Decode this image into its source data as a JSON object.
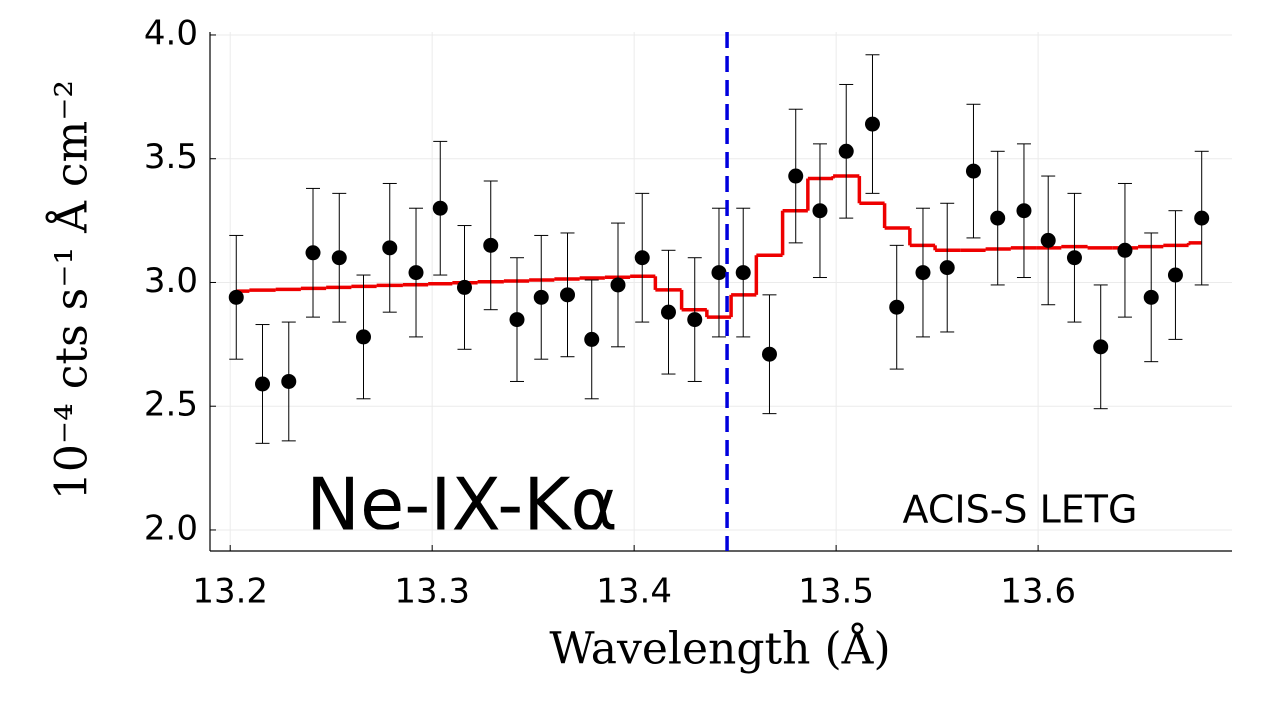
{
  "chart_data": {
    "type": "errorbar_step",
    "xlabel": "Wavelength (Å)",
    "ylabel": "10⁻⁴ cts s⁻¹ Å cm⁻²",
    "annotations": [
      "Ne-IX-Kα",
      "ACIS-S LETG"
    ],
    "xlim": [
      13.19,
      13.696
    ],
    "ylim": [
      1.915,
      4.012
    ],
    "xticks": [
      13.2,
      13.3,
      13.4,
      13.5,
      13.6
    ],
    "yticks": [
      {
        "value": 2,
        "label": "2.0"
      },
      2.5,
      {
        "value": 3,
        "label": "3.0"
      },
      3.5,
      {
        "value": 4,
        "label": "4.0"
      }
    ],
    "grid": true,
    "vline": {
      "x": 13.446,
      "color": "#0000dd"
    },
    "x": [
      13.203,
      13.216,
      13.229,
      13.241,
      13.254,
      13.266,
      13.279,
      13.292,
      13.304,
      13.316,
      13.329,
      13.342,
      13.354,
      13.367,
      13.379,
      13.392,
      13.404,
      13.417,
      13.43,
      13.442,
      13.454,
      13.467,
      13.48,
      13.492,
      13.505,
      13.518,
      13.53,
      13.543,
      13.555,
      13.568,
      13.58,
      13.593,
      13.605,
      13.618,
      13.631,
      13.643,
      13.656,
      13.668,
      13.681
    ],
    "series": [
      {
        "color": "#000000",
        "values": [
          2.94,
          2.59,
          2.6,
          3.12,
          3.1,
          2.78,
          3.14,
          3.04,
          3.3,
          2.98,
          3.15,
          2.85,
          2.94,
          2.95,
          2.77,
          2.99,
          3.1,
          2.88,
          2.85,
          3.04,
          3.04,
          2.71,
          3.43,
          3.29,
          3.53,
          3.64,
          2.9,
          3.04,
          3.06,
          3.45,
          3.26,
          3.29,
          3.17,
          3.1,
          2.74,
          3.13,
          2.94,
          3.03,
          3.26
        ],
        "errors": [
          0.25,
          0.24,
          0.24,
          0.26,
          0.26,
          0.25,
          0.26,
          0.26,
          0.27,
          0.25,
          0.26,
          0.25,
          0.25,
          0.25,
          0.24,
          0.25,
          0.26,
          0.25,
          0.25,
          0.26,
          0.26,
          0.24,
          0.27,
          0.27,
          0.27,
          0.28,
          0.25,
          0.26,
          0.26,
          0.27,
          0.27,
          0.27,
          0.26,
          0.26,
          0.25,
          0.27,
          0.26,
          0.26,
          0.27
        ]
      },
      {
        "color": "#ee0000",
        "values": [
          2.965,
          2.969,
          2.972,
          2.976,
          2.98,
          2.984,
          2.988,
          2.991,
          2.995,
          2.999,
          3.003,
          3.006,
          3.01,
          3.014,
          3.018,
          3.021,
          3.025,
          2.97,
          2.89,
          2.86,
          2.95,
          3.11,
          3.29,
          3.42,
          3.43,
          3.32,
          3.22,
          3.15,
          3.13,
          3.13,
          3.135,
          3.14,
          3.14,
          3.145,
          3.14,
          3.14,
          3.145,
          3.15,
          3.16
        ]
      }
    ]
  }
}
